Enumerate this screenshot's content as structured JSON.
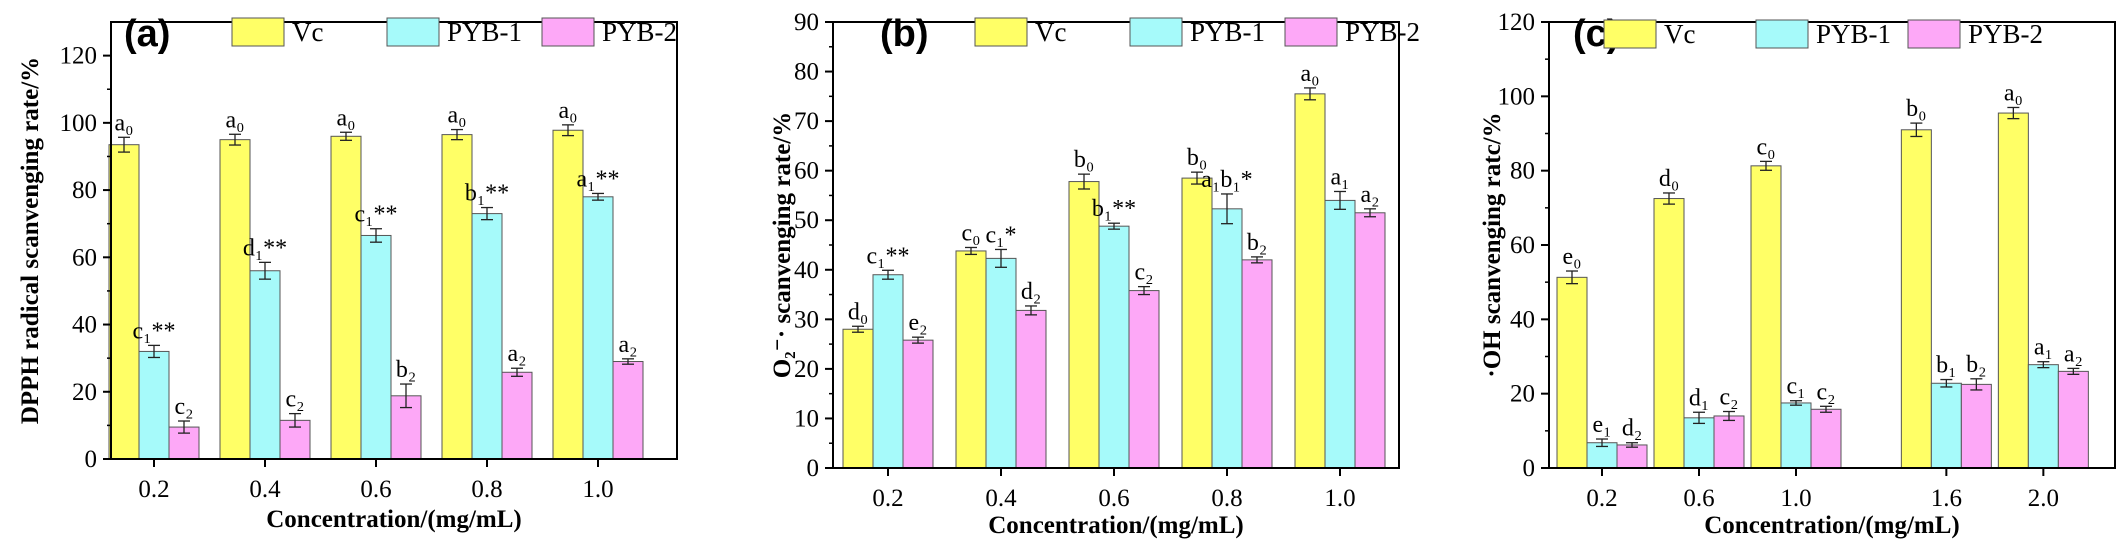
{
  "colors": {
    "Vc": "#ffff66",
    "PYB-1": "#a6fafa",
    "PYB-2": "#fda8f7"
  },
  "chart_data": [
    {
      "type": "bar",
      "panel": "(a)",
      "title": "",
      "ylabel": "DPPH radical scanvenging rate/%",
      "xlabel": "Concentration/(mg/mL)",
      "ylim": [
        0,
        130
      ],
      "yticks": [
        0,
        20,
        40,
        60,
        80,
        100,
        120
      ],
      "categories": [
        "0.2",
        "0.4",
        "0.6",
        "0.8",
        "1.0"
      ],
      "category_positions": [
        0,
        1,
        2,
        3,
        4
      ],
      "series": [
        {
          "name": "Vc",
          "values": [
            93.5,
            95.0,
            96.0,
            96.5,
            97.8
          ],
          "errors": [
            2.2,
            1.6,
            1.2,
            1.5,
            1.6
          ],
          "labels": [
            "a₀",
            "a₀",
            "a₀",
            "a₀",
            "a₀"
          ]
        },
        {
          "name": "PYB-1",
          "values": [
            32.0,
            56.0,
            66.5,
            73.0,
            78.0
          ],
          "errors": [
            1.8,
            2.5,
            2.0,
            1.8,
            1.0
          ],
          "labels": [
            "c₁**",
            "d₁**",
            "c₁**",
            "b₁**",
            "a₁**"
          ]
        },
        {
          "name": "PYB-2",
          "values": [
            9.5,
            11.5,
            18.8,
            25.8,
            29.0
          ],
          "errors": [
            1.8,
            2.0,
            3.5,
            1.2,
            0.8
          ],
          "labels": [
            "c₂",
            "c₂",
            "b₂",
            "a₂",
            "a₂"
          ]
        }
      ]
    },
    {
      "type": "bar",
      "panel": "(b)",
      "title": "",
      "ylabel": "O₂⁻· scanvenging rate/%",
      "xlabel": "Concentration/(mg/mL)",
      "ylim": [
        0,
        90
      ],
      "yticks": [
        0,
        10,
        20,
        30,
        40,
        50,
        60,
        70,
        80,
        90
      ],
      "categories": [
        "0.2",
        "0.4",
        "0.6",
        "0.8",
        "1.0"
      ],
      "category_positions": [
        0,
        1,
        2,
        3,
        4
      ],
      "series": [
        {
          "name": "Vc",
          "values": [
            28.0,
            43.8,
            57.8,
            58.5,
            75.5
          ],
          "errors": [
            0.6,
            0.7,
            1.5,
            1.2,
            1.2
          ],
          "labels": [
            "d₀",
            "c₀",
            "b₀",
            "b₀",
            "a₀"
          ]
        },
        {
          "name": "PYB-1",
          "values": [
            39.0,
            42.3,
            48.8,
            52.3,
            54.0
          ],
          "errors": [
            0.9,
            1.8,
            0.6,
            3.0,
            1.8
          ],
          "labels": [
            "c₁**",
            "c₁*",
            "b₁**",
            "a₁b₁*",
            "a₁"
          ]
        },
        {
          "name": "PYB-2",
          "values": [
            25.8,
            31.8,
            35.8,
            42.0,
            51.5
          ],
          "errors": [
            0.6,
            0.9,
            0.8,
            0.6,
            0.8
          ],
          "labels": [
            "e₂",
            "d₂",
            "c₂",
            "b₂",
            "a₂"
          ]
        }
      ]
    },
    {
      "type": "bar",
      "panel": "(c)",
      "title": "",
      "ylabel": "·OH scanvenging ratc/%",
      "xlabel": "Concentration/(mg/mL)",
      "ylim": [
        0,
        120
      ],
      "yticks": [
        0,
        20,
        40,
        60,
        80,
        100,
        120
      ],
      "categories": [
        "0.2",
        "0.6",
        "1.0",
        "1.6",
        "2.0"
      ],
      "category_positions": [
        0,
        1,
        2,
        3.55,
        4.55
      ],
      "series": [
        {
          "name": "Vc",
          "values": [
            51.3,
            72.5,
            81.3,
            91.0,
            95.5
          ],
          "errors": [
            1.7,
            1.5,
            1.2,
            1.8,
            1.5
          ],
          "labels": [
            "e₀",
            "d₀",
            "c₀",
            "b₀",
            "a₀"
          ]
        },
        {
          "name": "PYB-1",
          "values": [
            6.8,
            13.5,
            17.5,
            22.8,
            27.8
          ],
          "errors": [
            1.0,
            1.5,
            0.6,
            1.0,
            0.8
          ],
          "labels": [
            "e₁",
            "d₁",
            "c₁",
            "b₁",
            "a₁"
          ]
        },
        {
          "name": "PYB-2",
          "values": [
            6.2,
            14.0,
            15.8,
            22.5,
            26.0
          ],
          "errors": [
            0.6,
            1.2,
            0.8,
            1.5,
            0.8
          ],
          "labels": [
            "d₂",
            "c₂",
            "c₂",
            "b₂",
            "a₂"
          ]
        }
      ]
    }
  ]
}
